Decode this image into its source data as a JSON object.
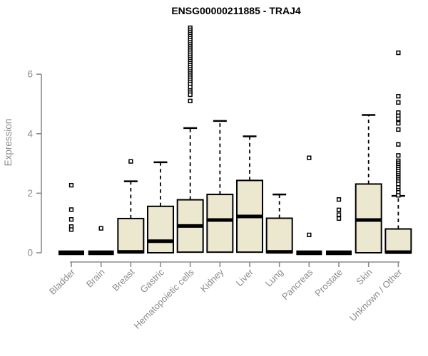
{
  "window": {
    "title": "ENSG00000211885 - TRAJ4"
  },
  "chart_data": {
    "type": "boxplot",
    "title": "ENSG00000211885 - TRAJ4",
    "ylabel": "Expression",
    "xlabel": "",
    "yticks": [
      0,
      2,
      4,
      6
    ],
    "ylim": [
      0,
      7.8
    ],
    "grid": false,
    "legend": "none",
    "colors": {
      "box_fill": "#ECE7CF",
      "box_border": "#000000",
      "median": "#000000",
      "whisker": "#000000",
      "axis": "#8B8B8B",
      "tick_label": "#8B8B8B",
      "title": "#000000",
      "background": "#FFFFFF"
    },
    "categories": [
      "Bladder",
      "Brain",
      "Breast",
      "Gastric",
      "Hematopoietic cells",
      "Kidney",
      "Liver",
      "Lung",
      "Pancreas",
      "Prostate",
      "Skin",
      "Unknown / Other"
    ],
    "boxes": [
      {
        "name": "Bladder",
        "whisker_low": 0,
        "q1": 0,
        "median": 0,
        "q3": 0,
        "whisker_high": 0,
        "outliers": [
          2.27,
          1.45,
          1.12,
          0.88,
          0.78
        ]
      },
      {
        "name": "Brain",
        "whisker_low": 0,
        "q1": 0,
        "median": 0,
        "q3": 0,
        "whisker_high": 0,
        "outliers": [
          0.82
        ]
      },
      {
        "name": "Breast",
        "whisker_low": 0,
        "q1": 0,
        "median": 0.03,
        "q3": 1.15,
        "whisker_high": 2.4,
        "outliers": [
          3.07
        ]
      },
      {
        "name": "Gastric",
        "whisker_low": 0,
        "q1": 0,
        "median": 0.39,
        "q3": 1.56,
        "whisker_high": 3.04,
        "outliers": []
      },
      {
        "name": "Hematopoietic cells",
        "whisker_low": 0,
        "q1": 0.02,
        "median": 0.9,
        "q3": 1.78,
        "whisker_high": 4.19,
        "outliers": [
          7.56,
          7.49,
          7.42,
          7.35,
          7.28,
          7.21,
          7.14,
          7.07,
          7.0,
          6.93,
          6.86,
          6.79,
          6.72,
          6.65,
          6.58,
          6.51,
          6.44,
          6.37,
          6.3,
          6.23,
          6.16,
          6.09,
          6.02,
          5.95,
          5.88,
          5.81,
          5.74,
          5.67,
          5.57,
          5.45,
          5.38,
          5.31,
          5.1
        ]
      },
      {
        "name": "Kidney",
        "whisker_low": 0,
        "q1": 0.02,
        "median": 1.1,
        "q3": 1.96,
        "whisker_high": 4.43,
        "outliers": []
      },
      {
        "name": "Liver",
        "whisker_low": 0,
        "q1": 0.02,
        "median": 1.22,
        "q3": 2.43,
        "whisker_high": 3.91,
        "outliers": []
      },
      {
        "name": "Lung",
        "whisker_low": 0,
        "q1": 0,
        "median": 0.03,
        "q3": 1.16,
        "whisker_high": 1.96,
        "outliers": []
      },
      {
        "name": "Pancreas",
        "whisker_low": 0,
        "q1": 0,
        "median": 0,
        "q3": 0,
        "whisker_high": 0,
        "outliers": [
          3.19,
          0.6
        ]
      },
      {
        "name": "Prostate",
        "whisker_low": 0,
        "q1": 0,
        "median": 0,
        "q3": 0,
        "whisker_high": 0,
        "outliers": [
          1.79,
          1.44,
          1.28,
          1.15
        ]
      },
      {
        "name": "Skin",
        "whisker_low": 0,
        "q1": 0,
        "median": 1.1,
        "q3": 2.31,
        "whisker_high": 4.63,
        "outliers": []
      },
      {
        "name": "Unknown / Other",
        "whisker_low": 0,
        "q1": 0,
        "median": 0.02,
        "q3": 0.8,
        "whisker_high": 1.91,
        "outliers": [
          6.72,
          5.26,
          5.05,
          4.71,
          4.6,
          4.5,
          4.35,
          4.14,
          3.64,
          3.27,
          3.09,
          3.02,
          2.95,
          2.88,
          2.81,
          2.74,
          2.67,
          2.6,
          2.53,
          2.46,
          2.39,
          2.31,
          2.19,
          2.1,
          2.03,
          1.93
        ]
      }
    ]
  }
}
